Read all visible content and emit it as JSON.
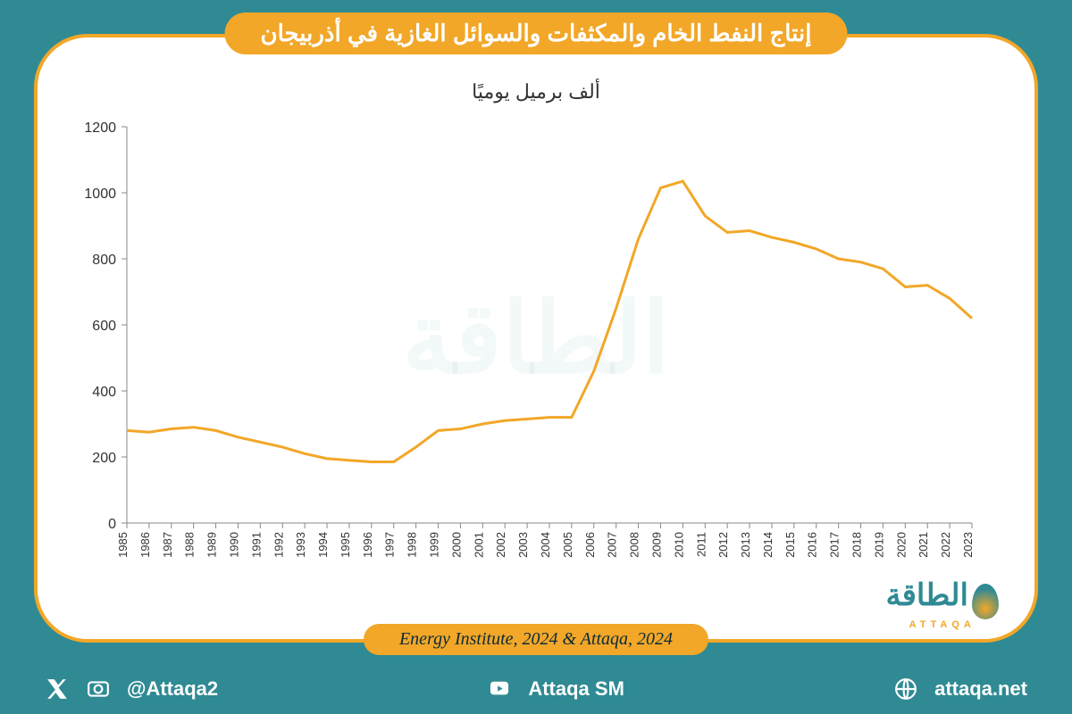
{
  "title": "إنتاج النفط الخام والمكثفات والسوائل الغازية في أذربيجان",
  "chart": {
    "type": "line",
    "subtitle": "ألف برميل يوميًا",
    "years": [
      1985,
      1986,
      1987,
      1988,
      1989,
      1990,
      1991,
      1992,
      1993,
      1994,
      1995,
      1996,
      1997,
      1998,
      1999,
      2000,
      2001,
      2002,
      2003,
      2004,
      2005,
      2006,
      2007,
      2008,
      2009,
      2010,
      2011,
      2012,
      2013,
      2014,
      2015,
      2016,
      2017,
      2018,
      2019,
      2020,
      2021,
      2022,
      2023
    ],
    "values": [
      280,
      275,
      285,
      290,
      280,
      260,
      245,
      230,
      210,
      195,
      190,
      185,
      185,
      230,
      280,
      285,
      300,
      310,
      315,
      320,
      320,
      460,
      650,
      860,
      1015,
      1035,
      930,
      880,
      885,
      865,
      850,
      830,
      800,
      790,
      770,
      715,
      720,
      680,
      620
    ],
    "line_color": "#f2a728",
    "line_width": 3,
    "ylim": [
      0,
      1200
    ],
    "ytick_step": 200,
    "background_color": "#ffffff",
    "axis_color": "#888888",
    "label_fontsize_y": 16,
    "label_fontsize_x": 13,
    "subtitle_fontsize": 22
  },
  "source": "Energy Institute, 2024 & Attaqa, 2024",
  "logo": {
    "main": "الطاقة",
    "sub": "ATTAQA"
  },
  "watermark": "الطاقة",
  "footer": {
    "twitter_handle": "@Attaqa2",
    "youtube_label": "Attaqa SM",
    "website": "attaqa.net"
  },
  "colors": {
    "page_bg": "#2f8a94",
    "accent": "#f2a728",
    "card_bg": "#ffffff",
    "text_dark": "#0a2a3a",
    "footer_text": "#ffffff"
  }
}
